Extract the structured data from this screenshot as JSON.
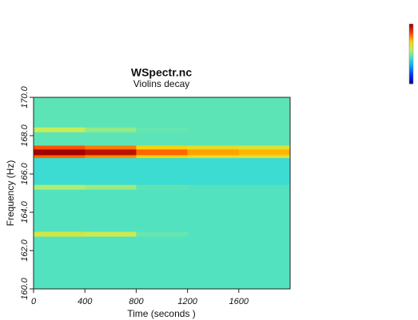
{
  "chart_data": {
    "type": "heatmap",
    "title": "WSpectr.nc",
    "subtitle": "Violins decay",
    "x_label": "Time (seconds )",
    "y_label": "Frequency (Hz)",
    "xbins": [
      0,
      400,
      800,
      1200,
      1600,
      2000
    ],
    "ybins": [
      160,
      162.75,
      163.0,
      165.2,
      165.45,
      166.85,
      167.0,
      167.3,
      167.5,
      168.2,
      168.45,
      170
    ],
    "z": [
      [
        0.45,
        0.45,
        0.45,
        0.45,
        0.45
      ],
      [
        0.62,
        0.6,
        0.47,
        0.45,
        0.45
      ],
      [
        0.45,
        0.45,
        0.45,
        0.45,
        0.45
      ],
      [
        0.55,
        0.53,
        0.46,
        0.45,
        0.45
      ],
      [
        0.42,
        0.42,
        0.42,
        0.42,
        0.42
      ],
      [
        0.82,
        0.78,
        0.7,
        0.66,
        0.64
      ],
      [
        1.0,
        0.96,
        0.82,
        0.76,
        0.74
      ],
      [
        0.84,
        0.8,
        0.7,
        0.66,
        0.64
      ],
      [
        0.46,
        0.46,
        0.46,
        0.46,
        0.46
      ],
      [
        0.58,
        0.52,
        0.47,
        0.46,
        0.46
      ],
      [
        0.46,
        0.46,
        0.46,
        0.46,
        0.46
      ]
    ],
    "colormap": [
      "#00008f",
      "#0030ff",
      "#00a0ff",
      "#40e0d0",
      "#c0f060",
      "#ffd000",
      "#ff4000",
      "#a00000"
    ],
    "xlim": [
      0,
      2000
    ],
    "xticks": [
      0,
      400,
      800,
      1200,
      1600
    ],
    "ylim": [
      160,
      170
    ],
    "yticks": [
      {
        "value": 160,
        "label": "160.0"
      },
      {
        "value": 162,
        "label": "162.0"
      },
      {
        "value": 164,
        "label": "164.0"
      },
      {
        "value": 166,
        "label": "166.0"
      },
      {
        "value": 168,
        "label": "168.0"
      },
      {
        "value": 170,
        "label": "170.0"
      }
    ]
  }
}
